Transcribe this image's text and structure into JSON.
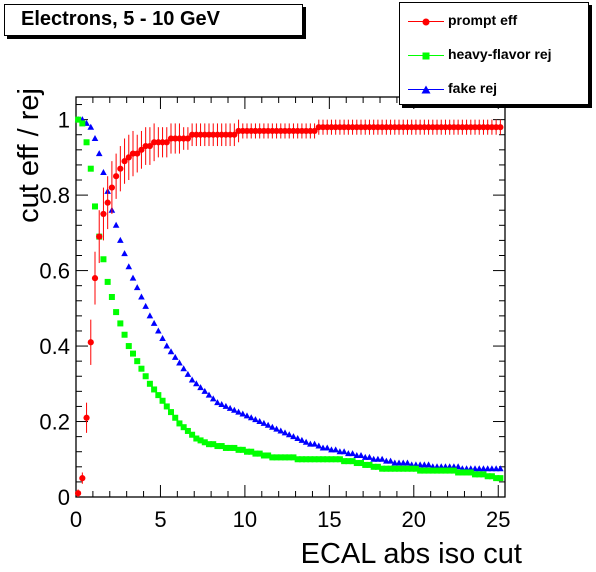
{
  "title": "Electrons, 5 - 10 GeV",
  "chart_data": {
    "type": "scatter",
    "title": "Electrons, 5 - 10 GeV",
    "xlabel": "ECAL abs iso cut",
    "ylabel": "cut eff / rej",
    "xlim": [
      0,
      25.4
    ],
    "ylim": [
      0,
      1.06
    ],
    "xticks": [
      "0",
      "5",
      "10",
      "15",
      "20",
      "25"
    ],
    "yticks": [
      "0",
      "0.2",
      "0.4",
      "0.6",
      "0.8",
      "1"
    ],
    "legend_position": "top-right",
    "series": [
      {
        "name": "prompt eff",
        "color": "#ff0000",
        "marker": "circle",
        "x": [
          0.125,
          0.375,
          0.625,
          0.875,
          1.125,
          1.375,
          1.625,
          1.875,
          2.125,
          2.375,
          2.625,
          2.875,
          3.125,
          3.375,
          3.625,
          3.875,
          4.125,
          4.375,
          4.625,
          4.875,
          5.125,
          5.375,
          5.625,
          5.875,
          6.125,
          6.375,
          6.625,
          6.875,
          7.125,
          7.375,
          7.625,
          7.875,
          8.125,
          8.375,
          8.625,
          8.875,
          9.125,
          9.375,
          9.625,
          9.875,
          10.125,
          10.375,
          10.625,
          10.875,
          11.125,
          11.375,
          11.625,
          11.875,
          12.125,
          12.375,
          12.625,
          12.875,
          13.125,
          13.375,
          13.625,
          13.875,
          14.125,
          14.375,
          14.625,
          14.875,
          15.125,
          15.375,
          15.625,
          15.875,
          16.125,
          16.375,
          16.625,
          16.875,
          17.125,
          17.375,
          17.625,
          17.875,
          18.125,
          18.375,
          18.625,
          18.875,
          19.125,
          19.375,
          19.625,
          19.875,
          20.125,
          20.375,
          20.625,
          20.875,
          21.125,
          21.375,
          21.625,
          21.875,
          22.125,
          22.375,
          22.625,
          22.875,
          23.125,
          23.375,
          23.625,
          23.875,
          24.125,
          24.375,
          24.625,
          24.875,
          25.125
        ],
        "y": [
          0.01,
          0.05,
          0.21,
          0.41,
          0.58,
          0.69,
          0.75,
          0.78,
          0.82,
          0.85,
          0.87,
          0.89,
          0.9,
          0.91,
          0.91,
          0.92,
          0.93,
          0.93,
          0.94,
          0.94,
          0.94,
          0.94,
          0.95,
          0.95,
          0.95,
          0.95,
          0.95,
          0.96,
          0.96,
          0.96,
          0.96,
          0.96,
          0.96,
          0.96,
          0.96,
          0.96,
          0.96,
          0.96,
          0.97,
          0.97,
          0.97,
          0.97,
          0.97,
          0.97,
          0.97,
          0.97,
          0.97,
          0.97,
          0.97,
          0.97,
          0.97,
          0.97,
          0.97,
          0.97,
          0.97,
          0.97,
          0.97,
          0.98,
          0.98,
          0.98,
          0.98,
          0.98,
          0.98,
          0.98,
          0.98,
          0.98,
          0.98,
          0.98,
          0.98,
          0.98,
          0.98,
          0.98,
          0.98,
          0.98,
          0.98,
          0.98,
          0.98,
          0.98,
          0.98,
          0.98,
          0.98,
          0.98,
          0.98,
          0.98,
          0.98,
          0.98,
          0.98,
          0.98,
          0.98,
          0.98,
          0.98,
          0.98,
          0.98,
          0.98,
          0.98,
          0.98,
          0.98,
          0.98,
          0.98,
          0.98,
          0.98
        ],
        "err": [
          0.01,
          0.015,
          0.04,
          0.06,
          0.07,
          0.07,
          0.07,
          0.07,
          0.07,
          0.06,
          0.06,
          0.06,
          0.06,
          0.06,
          0.05,
          0.05,
          0.05,
          0.05,
          0.05,
          0.04,
          0.04,
          0.04,
          0.04,
          0.04,
          0.04,
          0.03,
          0.03,
          0.03,
          0.03,
          0.03,
          0.03,
          0.03,
          0.03,
          0.03,
          0.03,
          0.03,
          0.03,
          0.03,
          0.03,
          0.02,
          0.02,
          0.02,
          0.02,
          0.02,
          0.02,
          0.02,
          0.02,
          0.02,
          0.02,
          0.02,
          0.02,
          0.02,
          0.02,
          0.02,
          0.02,
          0.02,
          0.02,
          0.02,
          0.02,
          0.02,
          0.02,
          0.02,
          0.02,
          0.02,
          0.02,
          0.02,
          0.02,
          0.02,
          0.02,
          0.02,
          0.02,
          0.02,
          0.02,
          0.02,
          0.02,
          0.02,
          0.02,
          0.02,
          0.02,
          0.02,
          0.02,
          0.02,
          0.02,
          0.02,
          0.02,
          0.02,
          0.02,
          0.02,
          0.02,
          0.02,
          0.02,
          0.02,
          0.02,
          0.02,
          0.02,
          0.02,
          0.02,
          0.02,
          0.02,
          0.02,
          0.02
        ]
      },
      {
        "name": "heavy-flavor rej",
        "color": "#00ff00",
        "marker": "square",
        "x": [
          0.125,
          0.375,
          0.625,
          0.875,
          1.125,
          1.375,
          1.625,
          1.875,
          2.125,
          2.375,
          2.625,
          2.875,
          3.125,
          3.375,
          3.625,
          3.875,
          4.125,
          4.375,
          4.625,
          4.875,
          5.125,
          5.375,
          5.625,
          5.875,
          6.125,
          6.375,
          6.625,
          6.875,
          7.125,
          7.375,
          7.625,
          7.875,
          8.125,
          8.375,
          8.625,
          8.875,
          9.125,
          9.375,
          9.625,
          9.875,
          10.125,
          10.375,
          10.625,
          10.875,
          11.125,
          11.375,
          11.625,
          11.875,
          12.125,
          12.375,
          12.625,
          12.875,
          13.125,
          13.375,
          13.625,
          13.875,
          14.125,
          14.375,
          14.625,
          14.875,
          15.125,
          15.375,
          15.625,
          15.875,
          16.125,
          16.375,
          16.625,
          16.875,
          17.125,
          17.375,
          17.625,
          17.875,
          18.125,
          18.375,
          18.625,
          18.875,
          19.125,
          19.375,
          19.625,
          19.875,
          20.125,
          20.375,
          20.625,
          20.875,
          21.125,
          21.375,
          21.625,
          21.875,
          22.125,
          22.375,
          22.625,
          22.875,
          23.125,
          23.375,
          23.625,
          23.875,
          24.125,
          24.375,
          24.625,
          24.875,
          25.125
        ],
        "y": [
          1.0,
          0.99,
          0.94,
          0.87,
          0.77,
          0.69,
          0.63,
          0.57,
          0.53,
          0.49,
          0.46,
          0.43,
          0.4,
          0.38,
          0.36,
          0.34,
          0.32,
          0.3,
          0.285,
          0.27,
          0.255,
          0.24,
          0.225,
          0.21,
          0.195,
          0.185,
          0.175,
          0.165,
          0.155,
          0.15,
          0.145,
          0.14,
          0.14,
          0.135,
          0.135,
          0.13,
          0.13,
          0.13,
          0.125,
          0.125,
          0.12,
          0.12,
          0.115,
          0.115,
          0.11,
          0.11,
          0.105,
          0.105,
          0.105,
          0.105,
          0.105,
          0.105,
          0.1,
          0.1,
          0.1,
          0.1,
          0.1,
          0.1,
          0.1,
          0.1,
          0.1,
          0.1,
          0.1,
          0.095,
          0.095,
          0.095,
          0.09,
          0.09,
          0.085,
          0.085,
          0.08,
          0.08,
          0.075,
          0.075,
          0.075,
          0.075,
          0.075,
          0.075,
          0.075,
          0.075,
          0.075,
          0.07,
          0.07,
          0.07,
          0.07,
          0.07,
          0.07,
          0.07,
          0.07,
          0.07,
          0.065,
          0.065,
          0.065,
          0.065,
          0.06,
          0.06,
          0.06,
          0.055,
          0.055,
          0.05,
          0.05
        ]
      },
      {
        "name": "fake rej",
        "color": "#0000ff",
        "marker": "triangle",
        "x": [
          0.125,
          0.375,
          0.625,
          0.875,
          1.125,
          1.375,
          1.625,
          1.875,
          2.125,
          2.375,
          2.625,
          2.875,
          3.125,
          3.375,
          3.625,
          3.875,
          4.125,
          4.375,
          4.625,
          4.875,
          5.125,
          5.375,
          5.625,
          5.875,
          6.125,
          6.375,
          6.625,
          6.875,
          7.125,
          7.375,
          7.625,
          7.875,
          8.125,
          8.375,
          8.625,
          8.875,
          9.125,
          9.375,
          9.625,
          9.875,
          10.125,
          10.375,
          10.625,
          10.875,
          11.125,
          11.375,
          11.625,
          11.875,
          12.125,
          12.375,
          12.625,
          12.875,
          13.125,
          13.375,
          13.625,
          13.875,
          14.125,
          14.375,
          14.625,
          14.875,
          15.125,
          15.375,
          15.625,
          15.875,
          16.125,
          16.375,
          16.625,
          16.875,
          17.125,
          17.375,
          17.625,
          17.875,
          18.125,
          18.375,
          18.625,
          18.875,
          19.125,
          19.375,
          19.625,
          19.875,
          20.125,
          20.375,
          20.625,
          20.875,
          21.125,
          21.375,
          21.625,
          21.875,
          22.125,
          22.375,
          22.625,
          22.875,
          23.125,
          23.375,
          23.625,
          23.875,
          24.125,
          24.375,
          24.625,
          24.875,
          25.125
        ],
        "y": [
          1.0,
          1.0,
          0.99,
          0.98,
          0.95,
          0.91,
          0.86,
          0.81,
          0.76,
          0.72,
          0.68,
          0.645,
          0.61,
          0.58,
          0.555,
          0.53,
          0.505,
          0.48,
          0.46,
          0.44,
          0.42,
          0.4,
          0.385,
          0.37,
          0.355,
          0.34,
          0.325,
          0.31,
          0.3,
          0.29,
          0.28,
          0.27,
          0.26,
          0.25,
          0.245,
          0.24,
          0.235,
          0.23,
          0.225,
          0.22,
          0.215,
          0.21,
          0.205,
          0.2,
          0.195,
          0.19,
          0.185,
          0.18,
          0.175,
          0.17,
          0.165,
          0.16,
          0.155,
          0.15,
          0.145,
          0.14,
          0.14,
          0.135,
          0.13,
          0.13,
          0.125,
          0.125,
          0.12,
          0.12,
          0.115,
          0.115,
          0.11,
          0.11,
          0.105,
          0.105,
          0.1,
          0.1,
          0.1,
          0.095,
          0.095,
          0.09,
          0.09,
          0.09,
          0.09,
          0.085,
          0.085,
          0.085,
          0.085,
          0.085,
          0.08,
          0.08,
          0.08,
          0.08,
          0.08,
          0.08,
          0.08,
          0.075,
          0.075,
          0.075,
          0.075,
          0.075,
          0.075,
          0.075,
          0.075,
          0.075,
          0.075
        ]
      }
    ]
  }
}
